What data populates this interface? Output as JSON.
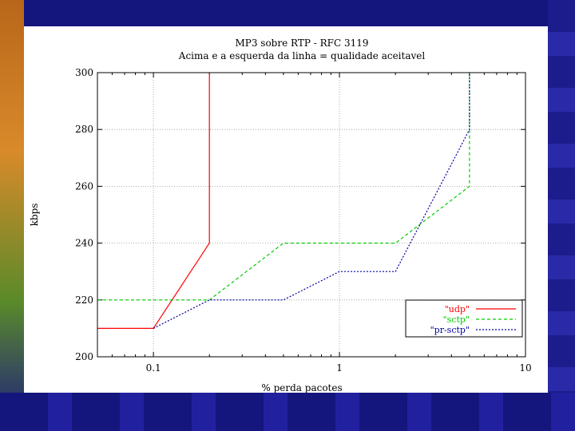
{
  "chart_data": {
    "type": "line",
    "title": "MP3 sobre RTP - RFC 3119",
    "subtitle": "Acima e a esquerda da linha = qualidade aceitavel",
    "xlabel": "% perda pacotes",
    "ylabel": "kbps",
    "xscale": "log",
    "xlim": [
      0.05,
      10
    ],
    "ylim": [
      200,
      300
    ],
    "x_ticks": [
      "0.1",
      "1",
      "10"
    ],
    "y_ticks": [
      "200",
      "220",
      "240",
      "260",
      "280",
      "300"
    ],
    "grid": true,
    "legend_position": "bottom-right",
    "series": [
      {
        "name": "\"udp\"",
        "color": "#ff0000",
        "dash": "solid",
        "points": [
          [
            0.05,
            210
          ],
          [
            0.1,
            210
          ],
          [
            0.2,
            240
          ],
          [
            0.2,
            300
          ]
        ]
      },
      {
        "name": "\"sctp\"",
        "color": "#00cc00",
        "dash": "dashed",
        "points": [
          [
            0.05,
            220
          ],
          [
            0.2,
            220
          ],
          [
            0.5,
            240
          ],
          [
            2,
            240
          ],
          [
            5,
            260
          ],
          [
            5,
            300
          ]
        ]
      },
      {
        "name": "\"pr-sctp\"",
        "color": "#0000a0",
        "dash": "dotted",
        "points": [
          [
            0.1,
            210
          ],
          [
            0.2,
            220
          ],
          [
            0.5,
            220
          ],
          [
            1,
            230
          ],
          [
            2,
            230
          ],
          [
            5,
            280
          ],
          [
            5,
            300
          ]
        ]
      }
    ]
  }
}
